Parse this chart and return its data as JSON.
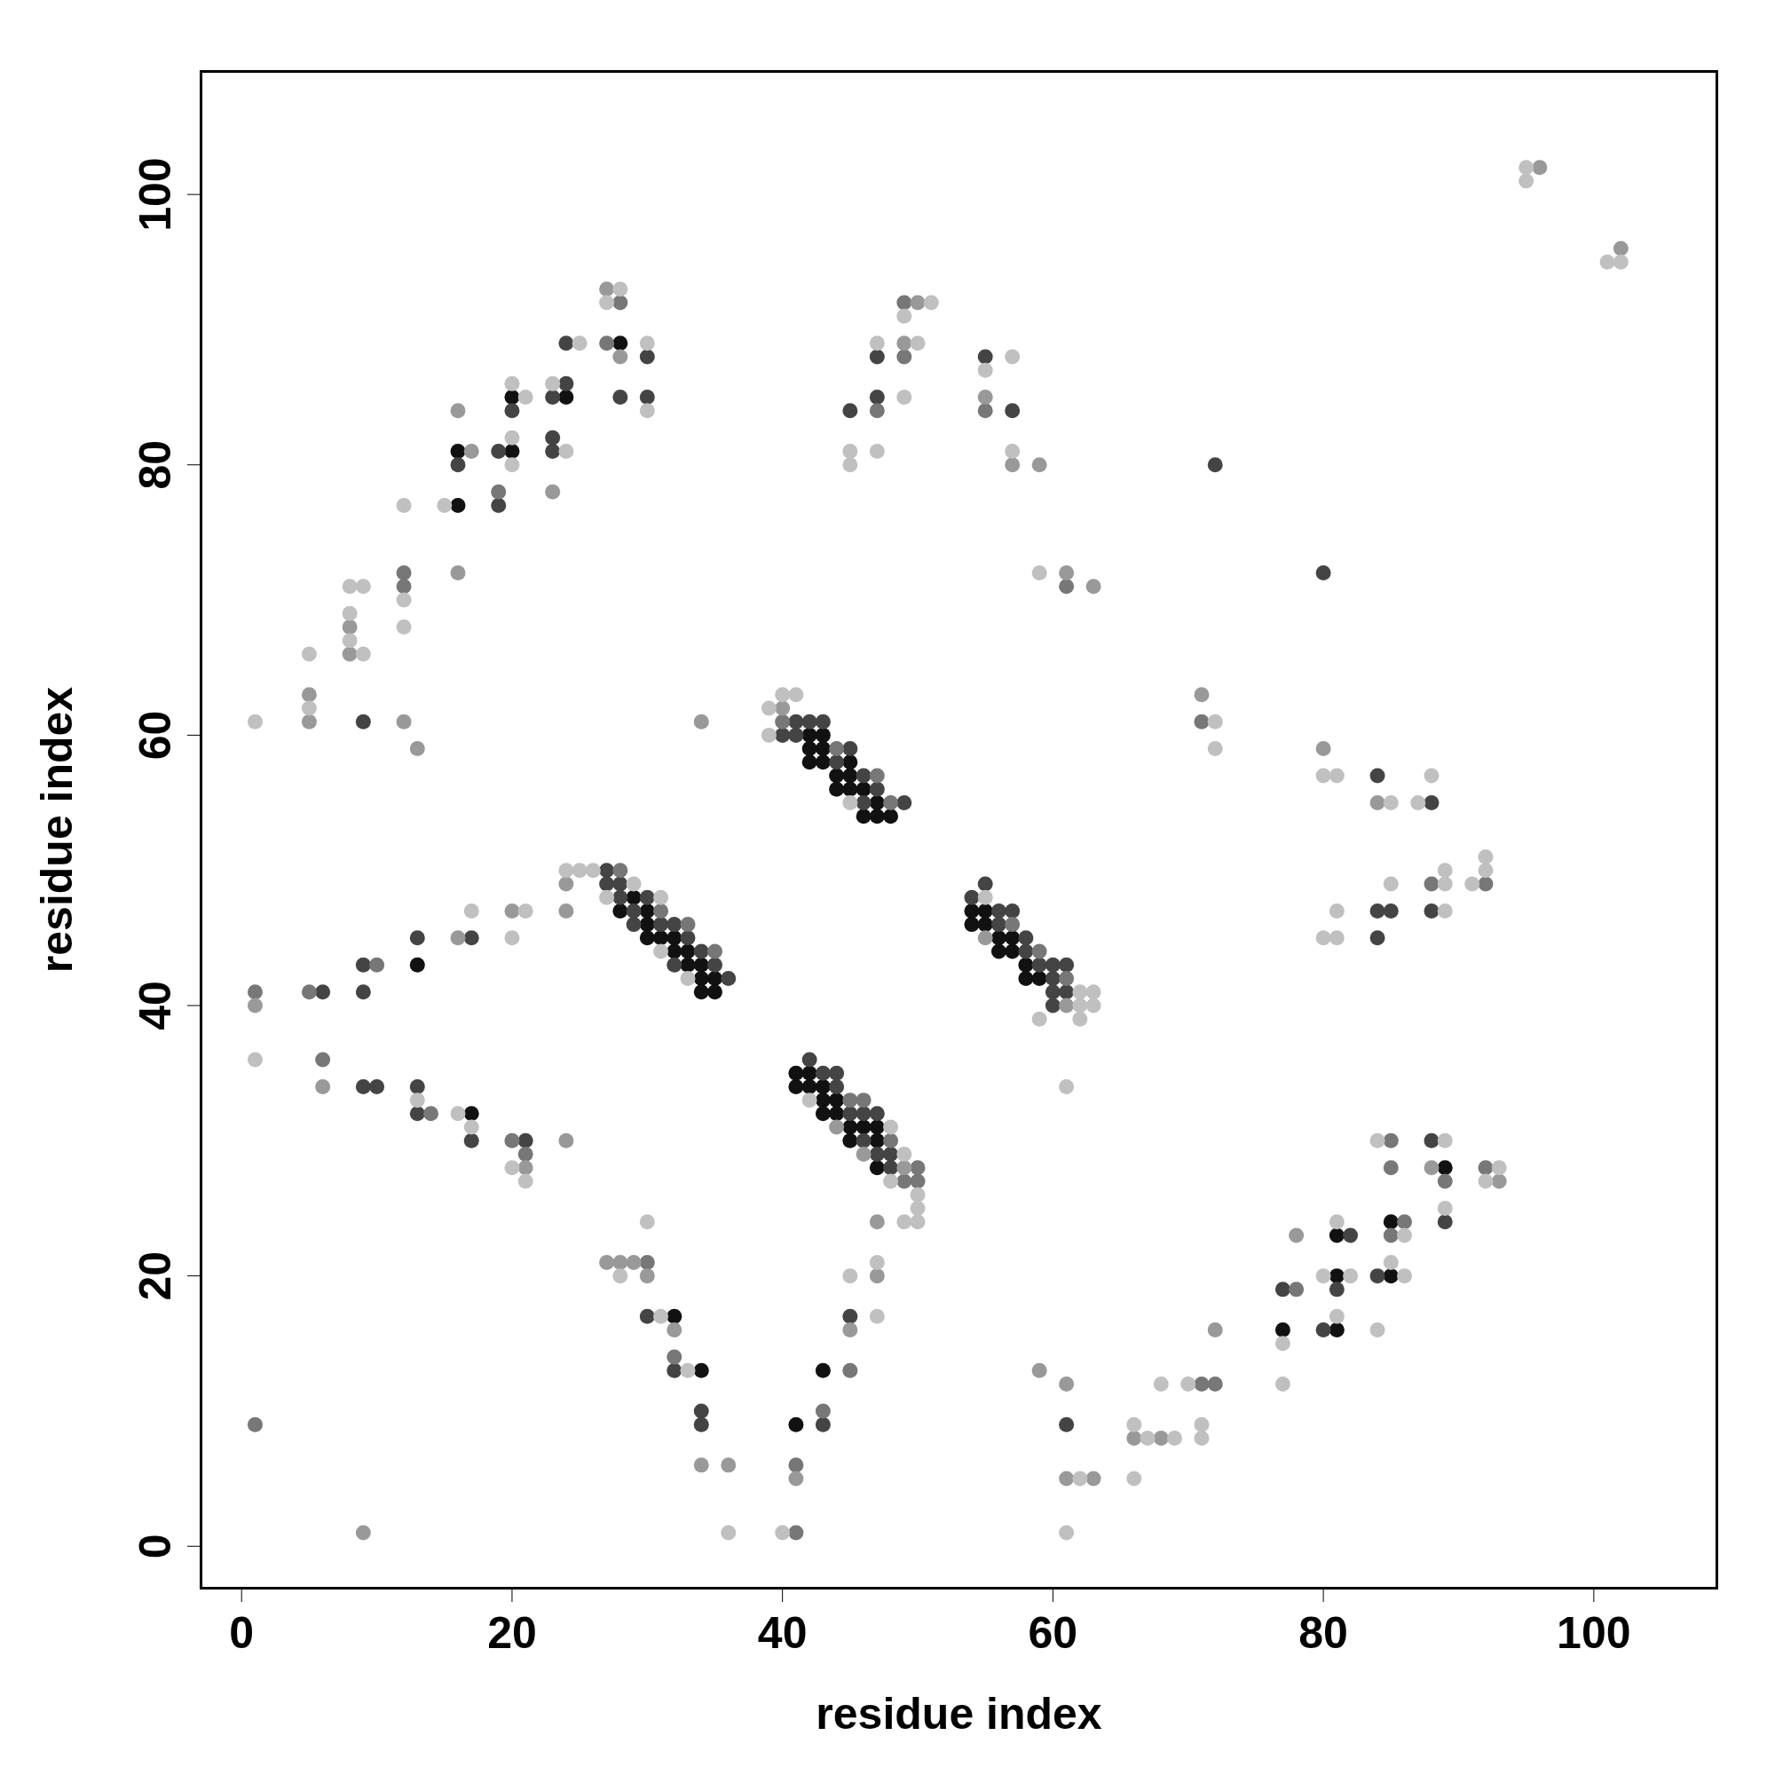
{
  "chart_data": {
    "type": "scatter",
    "xlabel": "residue index",
    "ylabel": "residue index",
    "xlim": [
      -3.1,
      109.2
    ],
    "ylim": [
      -3.2,
      109.2
    ],
    "xticks": [
      0,
      20,
      40,
      60,
      80,
      100
    ],
    "yticks": [
      0,
      20,
      40,
      60,
      80,
      100
    ],
    "marker": "circle",
    "series": [
      {
        "color": "#111111",
        "x": [
          13,
          16,
          16,
          17,
          20,
          20,
          24,
          28,
          29,
          28,
          30,
          30,
          30,
          31,
          32,
          32,
          33,
          33,
          34,
          34,
          35,
          34,
          35,
          32,
          34,
          41,
          43,
          41,
          41,
          42,
          42,
          43,
          43,
          43,
          44,
          44,
          45,
          45,
          46,
          47,
          47,
          47,
          42,
          42,
          42,
          43,
          43,
          43,
          44,
          44,
          45,
          45,
          45,
          46,
          46,
          47,
          47,
          48,
          54,
          54,
          55,
          55,
          56,
          56,
          57,
          57,
          58,
          58,
          59,
          77,
          81,
          81,
          81,
          85,
          85,
          89
        ],
        "values": [
          43,
          81,
          77,
          32,
          81,
          85,
          85,
          89,
          48,
          47,
          47,
          46,
          45,
          45,
          45,
          44,
          44,
          43,
          43,
          42,
          42,
          41,
          41,
          17,
          13,
          9,
          13,
          35,
          34,
          35,
          34,
          34,
          33,
          32,
          33,
          32,
          31,
          30,
          31,
          31,
          30,
          28,
          60,
          59,
          58,
          60,
          59,
          58,
          57,
          56,
          58,
          57,
          56,
          56,
          54,
          55,
          54,
          54,
          47,
          46,
          47,
          46,
          45,
          44,
          45,
          44,
          43,
          42,
          42,
          16,
          23,
          20,
          16,
          20,
          24,
          28
        ]
      },
      {
        "color": "#444444",
        "x": [
          6,
          9,
          9,
          9,
          9,
          10,
          13,
          13,
          13,
          16,
          17,
          17,
          19,
          19,
          20,
          21,
          23,
          24,
          23,
          23,
          24,
          28,
          30,
          30,
          27,
          27,
          28,
          28,
          29,
          30,
          29,
          31,
          32,
          33,
          34,
          32,
          35,
          36,
          30,
          32,
          34,
          34,
          43,
          45,
          42,
          43,
          44,
          44,
          45,
          46,
          46,
          47,
          47,
          48,
          48,
          40,
          41,
          41,
          42,
          43,
          44,
          45,
          46,
          46,
          47,
          49,
          45,
          47,
          47,
          55,
          57,
          54,
          55,
          56,
          56,
          57,
          58,
          58,
          59,
          60,
          60,
          60,
          60,
          61,
          61,
          61,
          72,
          80,
          77,
          80,
          82,
          81,
          84,
          88,
          89,
          84,
          88,
          84,
          85,
          84,
          88
        ],
        "values": [
          41,
          61,
          43,
          41,
          34,
          34,
          45,
          34,
          32,
          80,
          45,
          30,
          81,
          77,
          84,
          30,
          85,
          86,
          82,
          81,
          89,
          85,
          88,
          85,
          50,
          49,
          49,
          48,
          47,
          48,
          46,
          46,
          46,
          45,
          44,
          43,
          43,
          42,
          17,
          13,
          10,
          9,
          9,
          17,
          36,
          35,
          35,
          34,
          32,
          32,
          30,
          32,
          29,
          29,
          28,
          60,
          61,
          60,
          61,
          61,
          58,
          59,
          57,
          55,
          56,
          55,
          84,
          88,
          85,
          88,
          84,
          48,
          49,
          47,
          46,
          47,
          45,
          44,
          43,
          43,
          42,
          41,
          40,
          43,
          41,
          9,
          80,
          72,
          19,
          16,
          23,
          19,
          20,
          30,
          24,
          57,
          55,
          47,
          47,
          45,
          47
        ]
      },
      {
        "color": "#777777",
        "x": [
          1,
          1,
          5,
          6,
          10,
          12,
          12,
          14,
          19,
          20,
          21,
          28,
          27,
          28,
          31,
          33,
          35,
          30,
          32,
          41,
          41,
          43,
          45,
          45,
          46,
          48,
          49,
          50,
          50,
          40,
          44,
          47,
          48,
          47,
          49,
          49,
          55,
          61,
          57,
          59,
          61,
          71,
          72,
          71,
          78,
          86,
          85,
          85,
          85,
          89,
          92,
          88,
          92
        ],
        "values": [
          41,
          9,
          41,
          36,
          43,
          72,
          71,
          32,
          78,
          30,
          29,
          92,
          89,
          50,
          47,
          46,
          44,
          21,
          14,
          1,
          6,
          10,
          13,
          33,
          33,
          30,
          27,
          28,
          27,
          61,
          59,
          57,
          55,
          84,
          92,
          88,
          84,
          71,
          46,
          44,
          42,
          12,
          12,
          61,
          19,
          24,
          23,
          30,
          28,
          27,
          28,
          49,
          49
        ]
      },
      {
        "color": "#999999",
        "x": [
          1,
          5,
          5,
          6,
          8,
          8,
          9,
          12,
          13,
          16,
          16,
          17,
          16,
          20,
          21,
          23,
          24,
          24,
          24,
          27,
          28,
          27,
          28,
          29,
          30,
          32,
          34,
          36,
          41,
          45,
          47,
          47,
          44,
          46,
          49,
          34,
          40,
          49,
          50,
          55,
          57,
          59,
          61,
          63,
          55,
          61,
          59,
          61,
          61,
          63,
          66,
          68,
          72,
          71,
          78,
          88,
          93,
          80,
          84,
          96,
          102
        ],
        "values": [
          40,
          63,
          61,
          34,
          68,
          66,
          1,
          61,
          59,
          84,
          72,
          81,
          45,
          47,
          28,
          78,
          49,
          47,
          30,
          93,
          88,
          21,
          21,
          21,
          20,
          16,
          6,
          6,
          5,
          16,
          20,
          24,
          31,
          29,
          28,
          61,
          62,
          89,
          92,
          85,
          80,
          80,
          72,
          71,
          45,
          40,
          13,
          12,
          5,
          5,
          8,
          8,
          16,
          63,
          23,
          28,
          27,
          59,
          55,
          102,
          96
        ]
      },
      {
        "color": "#c0c0c0",
        "x": [
          1,
          1,
          5,
          5,
          8,
          8,
          8,
          9,
          9,
          12,
          12,
          12,
          13,
          15,
          17,
          16,
          17,
          20,
          20,
          20,
          21,
          21,
          20,
          20,
          21,
          23,
          24,
          25,
          24,
          25,
          26,
          28,
          27,
          30,
          30,
          27,
          29,
          31,
          31,
          33,
          28,
          30,
          31,
          33,
          36,
          40,
          45,
          47,
          47,
          42,
          48,
          48,
          49,
          49,
          50,
          50,
          50,
          39,
          39,
          40,
          41,
          45,
          45,
          45,
          47,
          47,
          51,
          49,
          50,
          49,
          55,
          57,
          57,
          59,
          55,
          59,
          62,
          62,
          62,
          63,
          63,
          61,
          62,
          61,
          66,
          66,
          67,
          68,
          69,
          70,
          71,
          71,
          72,
          72,
          77,
          77,
          80,
          81,
          81,
          82,
          84,
          86,
          85,
          86,
          84,
          89,
          89,
          93,
          92,
          80,
          81,
          85,
          87,
          88,
          80,
          81,
          81,
          85,
          89,
          89,
          89,
          91,
          92,
          92,
          95,
          95,
          101,
          102
        ],
        "values": [
          61,
          36,
          66,
          62,
          71,
          69,
          67,
          71,
          66,
          77,
          70,
          68,
          33,
          77,
          47,
          32,
          31,
          86,
          82,
          80,
          85,
          47,
          45,
          28,
          27,
          86,
          81,
          89,
          50,
          50,
          50,
          93,
          92,
          89,
          84,
          48,
          49,
          48,
          44,
          42,
          20,
          24,
          17,
          13,
          1,
          1,
          20,
          21,
          17,
          33,
          31,
          27,
          29,
          24,
          26,
          25,
          24,
          62,
          60,
          63,
          63,
          55,
          81,
          80,
          89,
          81,
          92,
          91,
          89,
          85,
          87,
          88,
          81,
          72,
          48,
          39,
          41,
          40,
          39,
          41,
          40,
          34,
          5,
          1,
          9,
          5,
          8,
          12,
          8,
          12,
          9,
          8,
          61,
          59,
          15,
          12,
          20,
          24,
          17,
          20,
          16,
          23,
          21,
          20,
          30,
          30,
          25,
          28,
          27,
          57,
          57,
          55,
          55,
          57,
          45,
          45,
          47,
          49,
          49,
          50,
          47,
          49,
          50,
          51,
          102,
          101,
          95,
          95
        ]
      }
    ]
  }
}
